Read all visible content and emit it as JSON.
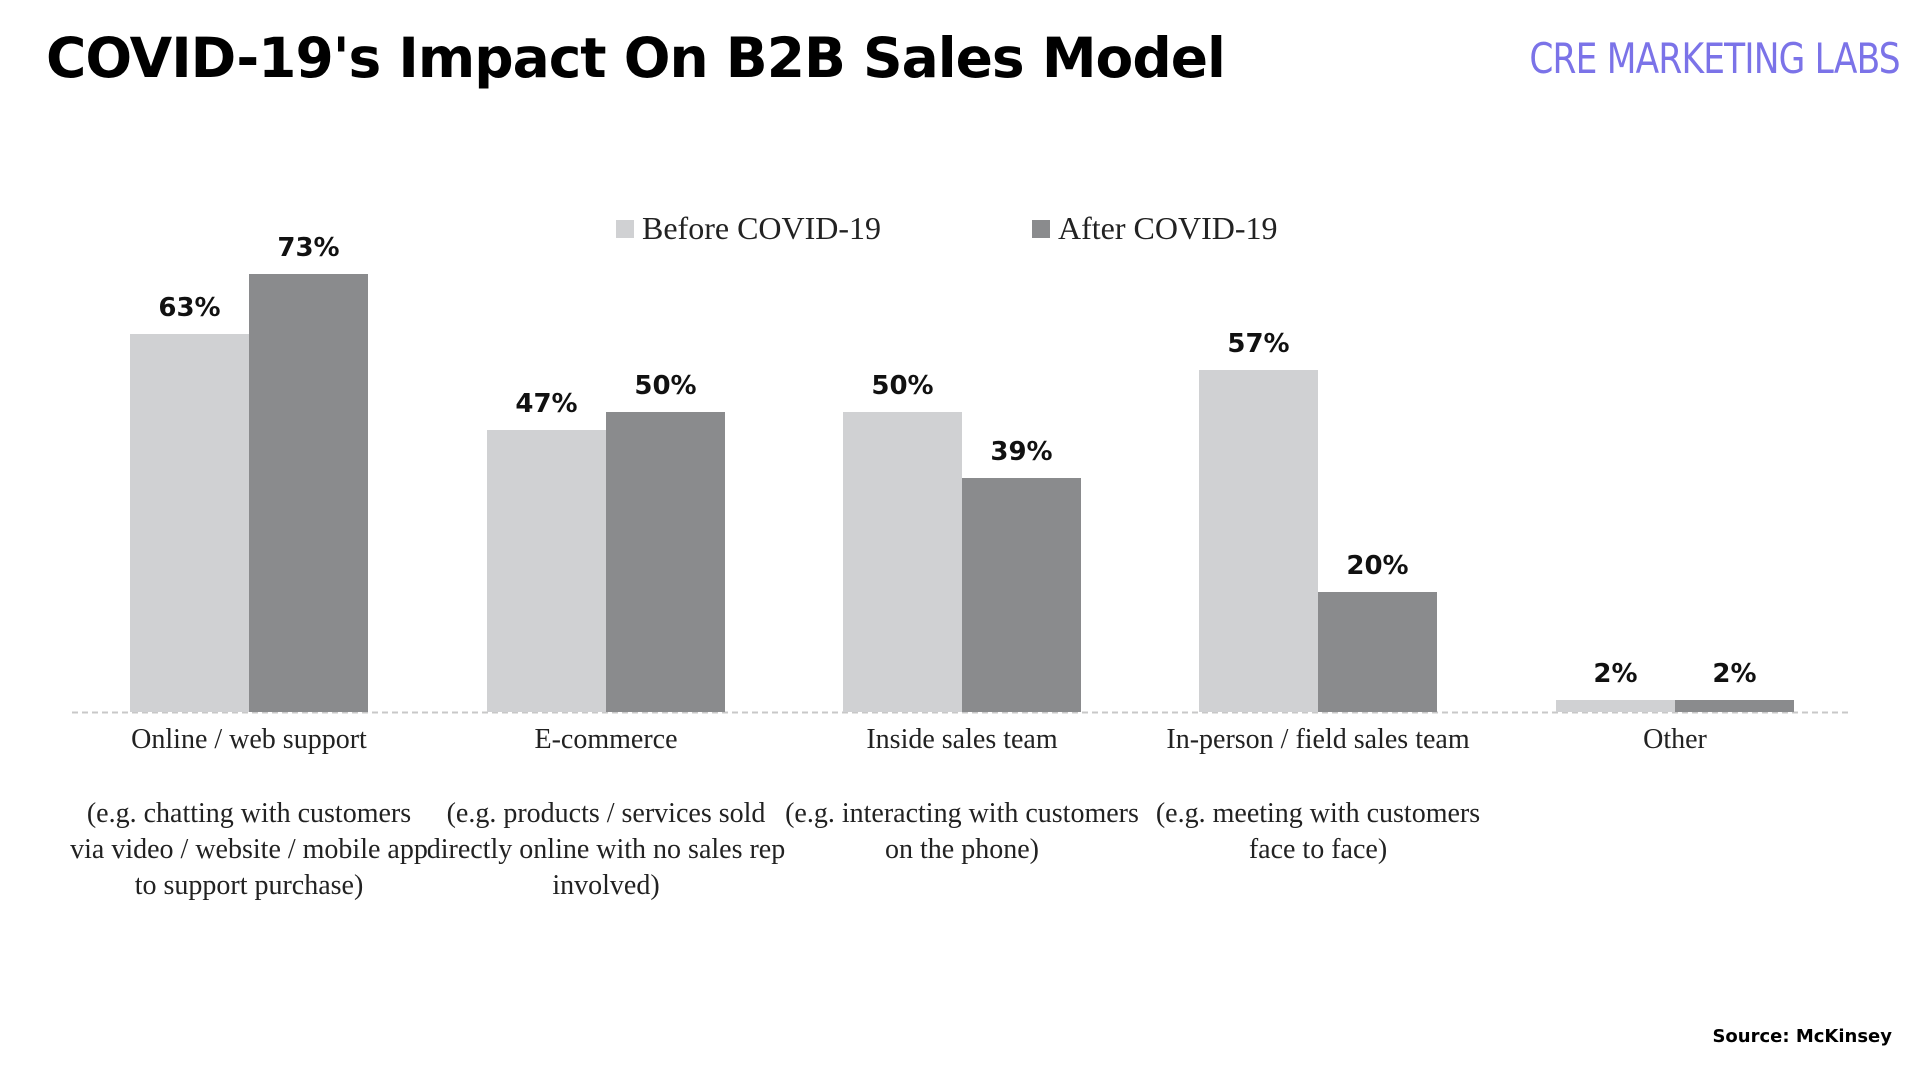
{
  "header": {
    "title": "COVID-19's Impact On B2B Sales Model",
    "brand": "CRE MARKETING LABS"
  },
  "footer": {
    "source": "Source: McKinsey"
  },
  "colors": {
    "before": "#d0d1d3",
    "after": "#8a8b8d",
    "baseline": "#c8c8c8"
  },
  "chart_data": {
    "type": "bar",
    "title": "COVID-19's Impact On B2B Sales Model",
    "xlabel": "",
    "ylabel": "",
    "ylim": [
      0,
      80
    ],
    "grid": false,
    "legend_position": "top",
    "categories": [
      "Online / web support",
      "E-commerce",
      "Inside sales team",
      "In-person / field sales team",
      "Other"
    ],
    "category_notes": [
      "(e.g. chatting with customers via video / website / mobile app to support purchase)",
      "(e.g. products / services sold directly online with no sales rep involved)",
      "(e.g. interacting with customers on the phone)",
      "(e.g. meeting with customers face to face)",
      ""
    ],
    "series": [
      {
        "name": "Before COVID-19",
        "values": [
          63,
          47,
          50,
          57,
          2
        ],
        "labels": [
          "63%",
          "47%",
          "50%",
          "57%",
          "2%"
        ]
      },
      {
        "name": "After COVID-19",
        "values": [
          73,
          50,
          39,
          20,
          2
        ],
        "labels": [
          "73%",
          "50%",
          "39%",
          "20%",
          "2%"
        ]
      }
    ]
  }
}
